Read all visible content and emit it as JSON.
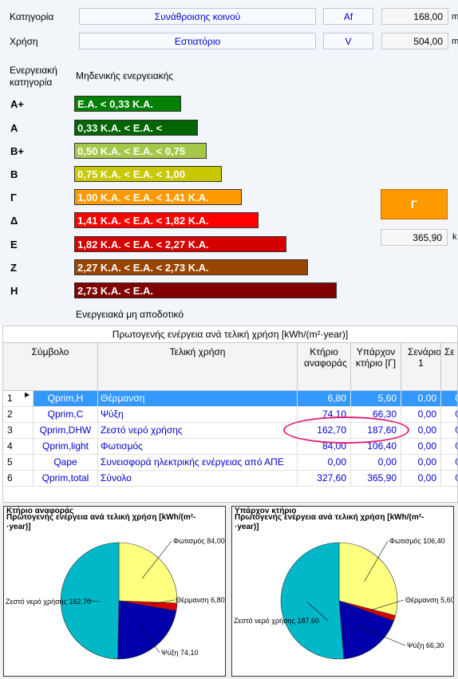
{
  "header": {
    "category_label": "Κατηγορία",
    "category_value": "Συνάθροισης κοινού",
    "use_label": "Χρήση",
    "use_value": "Εστιατόριο",
    "af_label": "Af",
    "af_value": "168,00",
    "af_unit": "m",
    "v_label": "V",
    "v_value": "504,00",
    "v_unit": "m"
  },
  "energy_scale": {
    "label_line1": "Ενεργειακή",
    "label_line2": "κατηγορία",
    "top_caption": "Μηδενικής ενεργειακής",
    "bottom_caption": "Ενεργειακά μη αποδοτικό",
    "categories": [
      {
        "letter": "Α+",
        "text": "Ε.Α. < 0,33 Κ.Α.",
        "color": "#008000"
      },
      {
        "letter": "Α",
        "text": "0,33 Κ.Α. < Ε.Α. <",
        "color": "#006400"
      },
      {
        "letter": "Β+",
        "text": "0,50 Κ.Α. < Ε.Α. < 0,75",
        "color": "#a6c84a"
      },
      {
        "letter": "Β",
        "text": "0,75 Κ.Α. < Ε.Α. < 1,00",
        "color": "#c8c800"
      },
      {
        "letter": "Γ",
        "text": "1,00 Κ.Α. < Ε.Α. < 1,41 Κ.Α.",
        "color": "#ff9900"
      },
      {
        "letter": "Δ",
        "text": "1,41 Κ.Α. < Ε.Α. < 1,82 Κ.Α.",
        "color": "#ff0000"
      },
      {
        "letter": "Ε",
        "text": "1,82 Κ.Α. < Ε.Α. < 2,27 Κ.Α.",
        "color": "#d40000"
      },
      {
        "letter": "Ζ",
        "text": "2,27 Κ.Α. < Ε.Α. < 2,73 Κ.Α.",
        "color": "#994400"
      },
      {
        "letter": "Η",
        "text": "2,73 Κ.Α. < Ε.Α.",
        "color": "#800000"
      }
    ],
    "result_letter": "Γ",
    "result_value": "365,90",
    "result_unit": "k"
  },
  "table": {
    "title": "Πρωτογενής ενέργεια ανά τελική χρήση [kWh/(m²·year)]",
    "columns": [
      "Σύμβολο",
      "Τελική χρήση",
      "Κτήριο αναφοράς",
      "Υπάρχον κτήριο [Γ]",
      "Σενάριο 1",
      "Σε"
    ],
    "rows": [
      {
        "n": "1",
        "symbol": "Qprim,H",
        "use": "Θέρμανση",
        "ref": "6,80",
        "exist": "5,60",
        "s1": "0,00",
        "s2": "0"
      },
      {
        "n": "2",
        "symbol": "Qprim,C",
        "use": "Ψύξη",
        "ref": "74,10",
        "exist": "66,30",
        "s1": "0,00",
        "s2": "0"
      },
      {
        "n": "3",
        "symbol": "Qprim,DHW",
        "use": "Ζεστό νερό χρήσης",
        "ref": "162,70",
        "exist": "187,60",
        "s1": "0,00",
        "s2": "0"
      },
      {
        "n": "4",
        "symbol": "Qprim,light",
        "use": "Φωτισμός",
        "ref": "84,00",
        "exist": "106,40",
        "s1": "0,00",
        "s2": "0"
      },
      {
        "n": "5",
        "symbol": "Qape",
        "use": "Συνεισφορά ηλεκτρικής ενέργειας από ΑΠΕ",
        "ref": "0,00",
        "exist": "0,00",
        "s1": "0,00",
        "s2": "0"
      },
      {
        "n": "6",
        "symbol": "Qprim,total",
        "use": "Σύνολο",
        "ref": "327,60",
        "exist": "365,90",
        "s1": "0,00",
        "s2": "0"
      }
    ]
  },
  "charts": [
    {
      "tab": "Κτήριο αναφοράς",
      "title_line1": "Πρωτογενής ενέργεια ανά τελική χρήση [kWh/(m²-",
      "title_line2": "·year)]",
      "labels": {
        "light": "Φωτισμός 84,00",
        "heat": "Θέρμανση 6,80",
        "cool": "Ψύξη 74,10",
        "dhw": "Ζεστό νερό χρήσης 162,70"
      }
    },
    {
      "tab": "Υπάρχον κτήριο",
      "title_line1": "Πρωτογενής ενέργεια ανά τελική χρήση [kWh/(m²-",
      "title_line2": "·year)]",
      "labels": {
        "light": "Φωτισμός 106,40",
        "heat": "Θέρμανση 5,60",
        "cool": "Ψύξη 66,30",
        "dhw": "Ζεστό νερό χρήσης 187,60"
      }
    }
  ],
  "chart_data": [
    {
      "type": "pie",
      "categories": [
        "Φωτισμός",
        "Θέρμανση",
        "Ψύξη",
        "Ζεστό νερό χρήσης"
      ],
      "values": [
        84.0,
        6.8,
        74.1,
        162.7
      ],
      "colors": [
        "#ffff80",
        "#dd0000",
        "#0000aa",
        "#00b8c8"
      ]
    },
    {
      "type": "pie",
      "categories": [
        "Φωτισμός",
        "Θέρμανση",
        "Ψύξη",
        "Ζεστό νερό χρήσης"
      ],
      "values": [
        106.4,
        5.6,
        66.3,
        187.6
      ],
      "colors": [
        "#ffff80",
        "#dd0000",
        "#0000aa",
        "#00b8c8"
      ]
    }
  ]
}
